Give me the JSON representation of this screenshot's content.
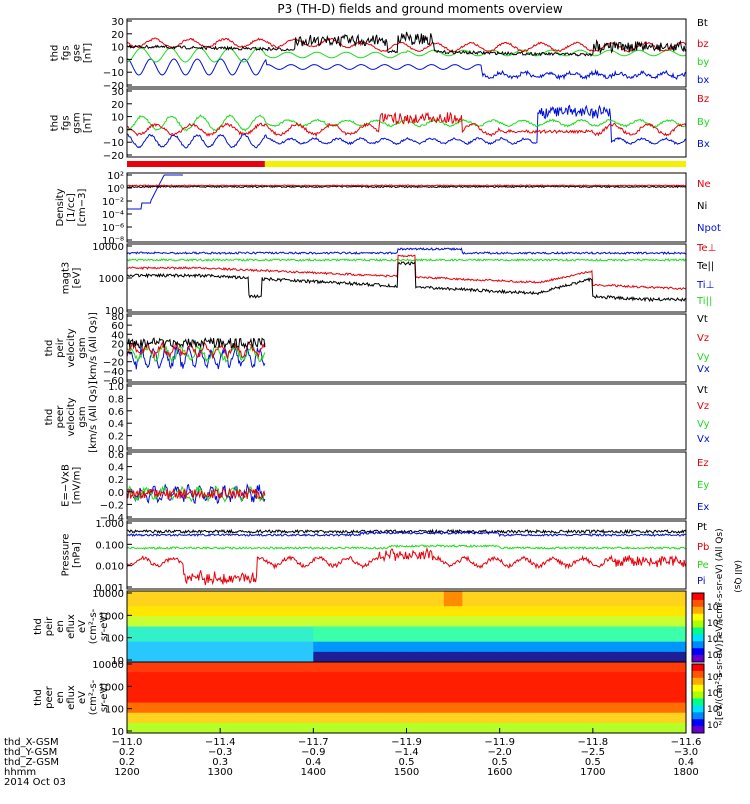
{
  "title": "P3 (TH-D) fields and ground moments overview",
  "colors": {
    "black": "#000000",
    "red": "#e8000b",
    "green": "#1ddc1d",
    "blue": "#0010d8",
    "yellow": "#f2f200",
    "white": "#ffffff"
  },
  "chart_data": [
    {
      "type": "line",
      "ylabel_lines": [
        "thd",
        "fgs",
        "gse",
        "[nT]"
      ],
      "yticks": [
        "30",
        "20",
        "10",
        "0",
        "−10",
        "−20"
      ],
      "ylim": [
        -20,
        30
      ],
      "series": [
        {
          "name": "Bt",
          "color": "black"
        },
        {
          "name": "bz",
          "color": "red"
        },
        {
          "name": "by",
          "color": "green"
        },
        {
          "name": "bx",
          "color": "blue"
        }
      ]
    },
    {
      "type": "line",
      "ylabel_lines": [
        "thd",
        "fgs",
        "gsm",
        "[nT]"
      ],
      "yticks": [
        "30",
        "20",
        "10",
        "0",
        "−10",
        "−20"
      ],
      "ylim": [
        -20,
        30
      ],
      "series": [
        {
          "name": "Bz",
          "color": "red"
        },
        {
          "name": "By",
          "color": "green"
        },
        {
          "name": "Bx",
          "color": "blue"
        }
      ]
    },
    {
      "type": "bar",
      "name": "mode bar",
      "segments": [
        {
          "color": "red",
          "from": 1200,
          "to": 1348
        },
        {
          "color": "yellow",
          "from": 1348,
          "to": 1800
        }
      ]
    },
    {
      "type": "line",
      "ylabel_lines": [
        "Density",
        "[1/cc]",
        "[cm−3]"
      ],
      "yticks": [
        "10²",
        "10⁰",
        "10⁻²",
        "10⁻⁴",
        "10⁻⁶",
        "10⁻⁸"
      ],
      "ylim": [
        1e-09,
        1000
      ],
      "yscale": "log",
      "series": [
        {
          "name": "Ne",
          "color": "red"
        },
        {
          "name": "Ni",
          "color": "black"
        },
        {
          "name": "Npot",
          "color": "blue"
        }
      ]
    },
    {
      "type": "line",
      "ylabel_lines": [
        "magt3",
        "[eV]"
      ],
      "yticks": [
        "10000",
        "1000",
        "100"
      ],
      "ylim": [
        100,
        15000
      ],
      "yscale": "log",
      "series": [
        {
          "name": "Te⊥",
          "color": "red"
        },
        {
          "name": "Te||",
          "color": "black"
        },
        {
          "name": "Ti⊥",
          "color": "blue"
        },
        {
          "name": "Ti||",
          "color": "green"
        }
      ]
    },
    {
      "type": "line",
      "ylabel_lines": [
        "thd",
        "peir",
        "velocity",
        "gsm",
        "[km/s (All Qs)]"
      ],
      "yticks": [
        "80",
        "60",
        "40",
        "20",
        "0",
        "−20",
        "−40",
        "−60"
      ],
      "ylim": [
        -60,
        80
      ],
      "series": [
        {
          "name": "Vt",
          "color": "black"
        },
        {
          "name": "Vz",
          "color": "red"
        },
        {
          "name": "Vy",
          "color": "green"
        },
        {
          "name": "Vx",
          "color": "blue"
        }
      ]
    },
    {
      "type": "line",
      "ylabel_lines": [
        "thd",
        "peer",
        "velocity",
        "gsm",
        "[km/s (All Qs)]"
      ],
      "yticks": [
        "1.0",
        "0.8",
        "0.6",
        "0.4",
        "0.2",
        "0.0"
      ],
      "ylim": [
        0,
        1
      ],
      "series": [
        {
          "name": "Vt",
          "color": "black"
        },
        {
          "name": "Vz",
          "color": "red"
        },
        {
          "name": "Vy",
          "color": "green"
        },
        {
          "name": "Vx",
          "color": "blue"
        }
      ]
    },
    {
      "type": "line",
      "ylabel_lines": [
        "E=−VxB",
        "[mV/m]"
      ],
      "yticks": [
        "0.6",
        "0.4",
        "0.2",
        "0.0",
        "−0.2",
        "−0.4"
      ],
      "ylim": [
        -0.4,
        0.6
      ],
      "series": [
        {
          "name": "Ez",
          "color": "red"
        },
        {
          "name": "Ey",
          "color": "green"
        },
        {
          "name": "Ex",
          "color": "blue"
        }
      ]
    },
    {
      "type": "line",
      "ylabel_lines": [
        "Pressure",
        "[nPa]"
      ],
      "yticks": [
        "1.000",
        "0.100",
        "0.010",
        "0.001"
      ],
      "ylim": [
        0.001,
        1.2
      ],
      "yscale": "log",
      "series": [
        {
          "name": "Pt",
          "color": "black"
        },
        {
          "name": "Pb",
          "color": "red"
        },
        {
          "name": "Pe",
          "color": "green"
        },
        {
          "name": "Pi",
          "color": "blue"
        }
      ],
      "side_note": "(All Qs)"
    },
    {
      "type": "heatmap",
      "ylabel_lines": [
        "thd",
        "peir",
        "en",
        "eflux",
        "eV",
        "(cm²-s-",
        "sr-eV)"
      ],
      "yticks": [
        "10000",
        "1000",
        "100",
        "10"
      ]
    },
    {
      "type": "heatmap",
      "ylabel_lines": [
        "thd",
        "peer",
        "en",
        "eflux",
        "eV",
        "(cm²-s-",
        "sr-eV)"
      ],
      "yticks": [
        "10000",
        "1000",
        "100",
        "10"
      ]
    }
  ],
  "colorbar": {
    "ticks": [
      "10⁸",
      "10⁶",
      "10⁴",
      "10²",
      "10⁸",
      "10⁶",
      "10⁴",
      "10²"
    ],
    "label": "[eV/(cm²-s-sr-eV)] eV/(cm²-s-sr-eV) (All Qs)"
  },
  "xaxis": {
    "x_ticks": [
      1200,
      1300,
      1400,
      1500,
      1600,
      1700,
      1800
    ],
    "rows": [
      {
        "label": "thd_X-GSM",
        "values": [
          "−11.0",
          "−11.4",
          "−11.7",
          "−11.9",
          "−11.9",
          "−11.8",
          "−11.6"
        ]
      },
      {
        "label": "thd_Y-GSM",
        "values": [
          "0.2",
          "−0.3",
          "−0.9",
          "−1.4",
          "−2.0",
          "−2.5",
          "−3.0"
        ]
      },
      {
        "label": "thd_Z-GSM",
        "values": [
          "0.2",
          "0.3",
          "0.4",
          "0.5",
          "0.5",
          "0.5",
          "0.4"
        ]
      },
      {
        "label": "hhmm",
        "values": [
          "1200",
          "1300",
          "1400",
          "1500",
          "1600",
          "1700",
          "1800"
        ]
      }
    ],
    "date": "2014 Oct 03"
  }
}
